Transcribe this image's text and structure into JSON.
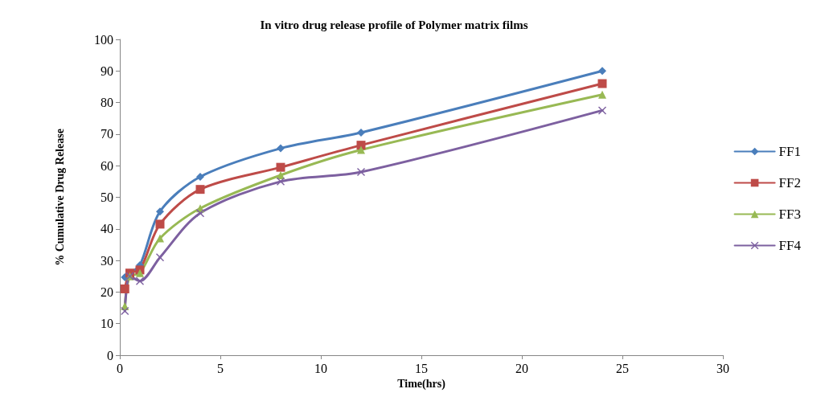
{
  "chart_data": {
    "type": "line",
    "title": "In vitro drug release profile of Polymer matrix films",
    "xlabel": "Time(hrs)",
    "ylabel": "% Cumulative Drug Release",
    "xlim": [
      0,
      30
    ],
    "xticks": [
      0,
      5,
      10,
      15,
      20,
      25,
      30
    ],
    "ylim": [
      0,
      100
    ],
    "yticks": [
      0,
      10,
      20,
      30,
      40,
      50,
      60,
      70,
      80,
      90,
      100
    ],
    "grid": false,
    "legend": "right",
    "line_style": "solid",
    "series": [
      {
        "name": "FF1",
        "color": "#4a7ebb",
        "marker": "diamond",
        "x": [
          0.25,
          0.5,
          1,
          2,
          4,
          8,
          12,
          24
        ],
        "values": [
          24.7,
          26,
          28.5,
          45.5,
          56.5,
          65.5,
          70.5,
          90
        ]
      },
      {
        "name": "FF2",
        "color": "#be4b48",
        "marker": "square",
        "x": [
          0.25,
          0.5,
          1,
          2,
          4,
          8,
          12,
          24
        ],
        "values": [
          21,
          26,
          27,
          41.5,
          52.5,
          59.5,
          66.5,
          86
        ]
      },
      {
        "name": "FF3",
        "color": "#98b954",
        "marker": "triangle",
        "x": [
          0.25,
          0.5,
          1,
          2,
          4,
          8,
          12,
          24
        ],
        "values": [
          15.5,
          25,
          26,
          37,
          46.5,
          57,
          65,
          82.5
        ]
      },
      {
        "name": "FF4",
        "color": "#7d60a0",
        "marker": "cross",
        "x": [
          0.25,
          0.5,
          1,
          2,
          4,
          8,
          12,
          24
        ],
        "values": [
          14,
          25,
          23.5,
          31,
          45,
          55,
          58,
          77.5
        ]
      }
    ]
  }
}
